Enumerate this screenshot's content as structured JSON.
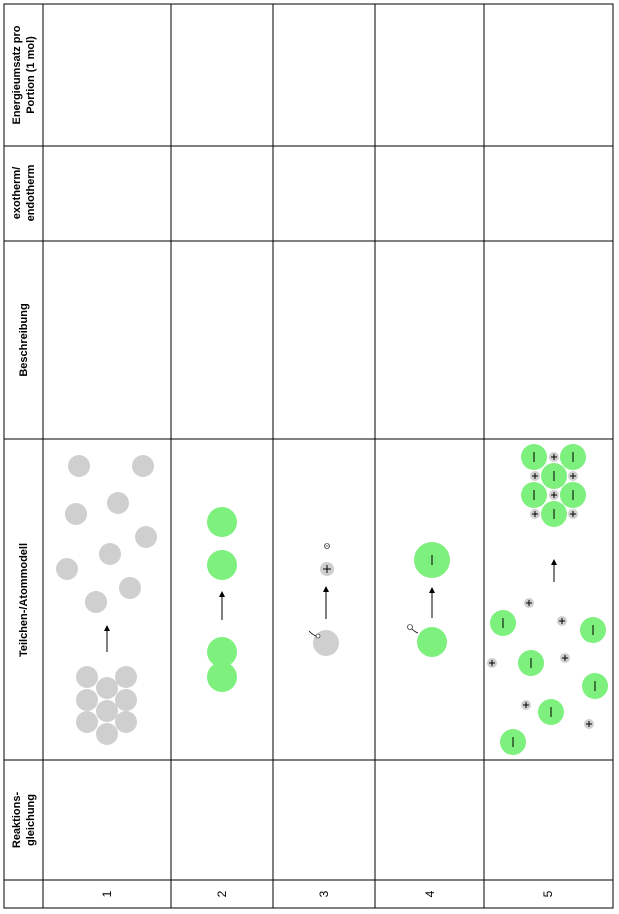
{
  "columns": {
    "energie": "Energieumsatz pro Portion (1 mol)",
    "energie_line1": "Energieumsatz pro",
    "energie_line2": "Portion (1 mol)",
    "exo": "exotherm/ endotherm",
    "exo_line1": "exotherm/",
    "exo_line2": "endotherm",
    "beschreibung": "Beschreibung",
    "modell": "Teilchen-/Atommodell",
    "reaktion": "Reaktions- gleichung",
    "reaktion_line1": "Reaktions-",
    "reaktion_line2": "gleichung"
  },
  "rows": [
    {
      "number": "1"
    },
    {
      "number": "2"
    },
    {
      "number": "3"
    },
    {
      "number": "4"
    },
    {
      "number": "5"
    }
  ],
  "model_icons": {
    "grey_particle": "metal-atom-grey",
    "green_particle": "chlorine-green",
    "electron": "electron-icon",
    "arrow": "reaction-arrow-icon"
  },
  "colors": {
    "grey_atom": "#cfcfcf",
    "green_atom": "#7df07d",
    "line": "#000000"
  }
}
